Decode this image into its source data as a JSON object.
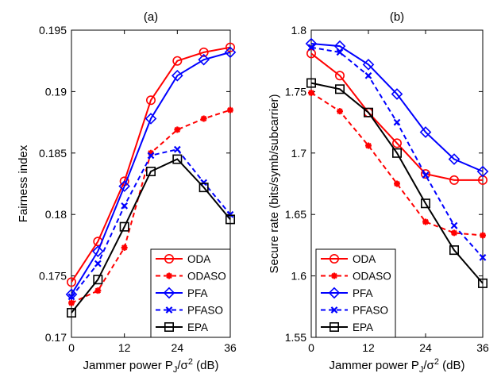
{
  "chart_data": [
    {
      "type": "line",
      "title": "(a)",
      "xlabel": "Jammer power P_J/σ^2 (dB)",
      "xlabel_parts": {
        "main": "Jammer power P",
        "sub": "J",
        "mid": "/σ",
        "sup": "2",
        "unit": " (dB)"
      },
      "ylabel": "Fairness index",
      "xlim": [
        0,
        36
      ],
      "ylim": [
        0.17,
        0.195
      ],
      "xticks": [
        0,
        12,
        24,
        36
      ],
      "xtick_labels": [
        "0",
        "12",
        "24",
        "36"
      ],
      "yticks": [
        0.17,
        0.175,
        0.18,
        0.185,
        0.19,
        0.195
      ],
      "ytick_labels": [
        "0.17",
        "0.175",
        "0.18",
        "0.185",
        "0.19",
        "0.195"
      ],
      "grid": false,
      "legend": "bottom-right",
      "x": [
        0,
        6,
        12,
        18,
        24,
        30,
        36
      ],
      "series": [
        {
          "name": "ODA",
          "color": "#ff0000",
          "dash": "solid",
          "marker": "circle",
          "values": [
            0.1745,
            0.1778,
            0.1827,
            0.1893,
            0.1925,
            0.1932,
            0.1936
          ]
        },
        {
          "name": "ODASO",
          "color": "#ff0000",
          "dash": "dashed",
          "marker": "star",
          "values": [
            0.1728,
            0.1738,
            0.1773,
            0.185,
            0.1869,
            0.1878,
            0.1885
          ]
        },
        {
          "name": "PFA",
          "color": "#0000ff",
          "dash": "solid",
          "marker": "diamond",
          "values": [
            0.1735,
            0.177,
            0.1823,
            0.1878,
            0.1913,
            0.1926,
            0.1932
          ]
        },
        {
          "name": "PFASO",
          "color": "#0000ff",
          "dash": "dashed",
          "marker": "x",
          "values": [
            0.1733,
            0.176,
            0.1807,
            0.1848,
            0.1853,
            0.1826,
            0.18
          ]
        },
        {
          "name": "EPA",
          "color": "#000000",
          "dash": "solid",
          "marker": "square",
          "values": [
            0.172,
            0.1747,
            0.179,
            0.1835,
            0.1845,
            0.1822,
            0.1796
          ]
        }
      ]
    },
    {
      "type": "line",
      "title": "(b)",
      "xlabel": "Jammer power P_J/σ^2 (dB)",
      "xlabel_parts": {
        "main": "Jammer power P",
        "sub": "J",
        "mid": "/σ",
        "sup": "2",
        "unit": " (dB)"
      },
      "ylabel": "Secure rate (bits/symb/subcarrier)",
      "xlim": [
        0,
        36
      ],
      "ylim": [
        1.55,
        1.8
      ],
      "xticks": [
        0,
        12,
        24,
        36
      ],
      "xtick_labels": [
        "0",
        "12",
        "24",
        "36"
      ],
      "yticks": [
        1.55,
        1.6,
        1.65,
        1.7,
        1.75,
        1.8
      ],
      "ytick_labels": [
        "1.55",
        "1.6",
        "1.65",
        "1.7",
        "1.75",
        "1.8"
      ],
      "grid": false,
      "legend": "bottom-left",
      "x": [
        0,
        6,
        12,
        18,
        24,
        30,
        36
      ],
      "series": [
        {
          "name": "ODA",
          "color": "#ff0000",
          "dash": "solid",
          "marker": "circle",
          "values": [
            1.781,
            1.763,
            1.733,
            1.708,
            1.683,
            1.678,
            1.678
          ]
        },
        {
          "name": "ODASO",
          "color": "#ff0000",
          "dash": "dashed",
          "marker": "star",
          "values": [
            1.749,
            1.734,
            1.706,
            1.675,
            1.644,
            1.635,
            1.633
          ]
        },
        {
          "name": "PFA",
          "color": "#0000ff",
          "dash": "solid",
          "marker": "diamond",
          "values": [
            1.789,
            1.787,
            1.772,
            1.748,
            1.717,
            1.695,
            1.685
          ]
        },
        {
          "name": "PFASO",
          "color": "#0000ff",
          "dash": "dashed",
          "marker": "x",
          "values": [
            1.786,
            1.782,
            1.763,
            1.725,
            1.682,
            1.641,
            1.615
          ]
        },
        {
          "name": "EPA",
          "color": "#000000",
          "dash": "solid",
          "marker": "square",
          "values": [
            1.757,
            1.752,
            1.733,
            1.7,
            1.659,
            1.621,
            1.594
          ]
        }
      ]
    }
  ]
}
